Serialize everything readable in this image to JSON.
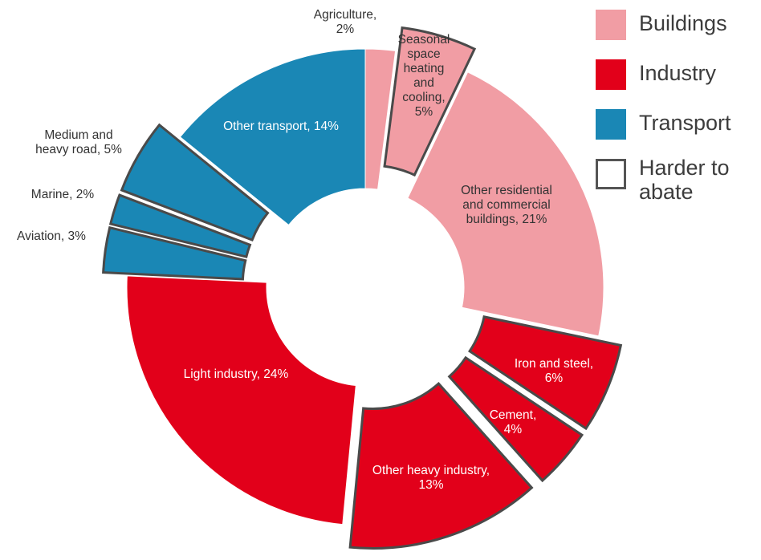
{
  "chart_data": {
    "type": "pie",
    "variant": "donut",
    "unit": "%",
    "slices": [
      {
        "label": "Agriculture, 2%",
        "value": 2,
        "sector": "Buildings",
        "harder_to_abate": false
      },
      {
        "label": "Seasonal space heating and cooling, 5%",
        "value": 5,
        "sector": "Buildings",
        "harder_to_abate": true
      },
      {
        "label": "Other residential and commercial buildings, 21%",
        "value": 21,
        "sector": "Buildings",
        "harder_to_abate": false
      },
      {
        "label": "Iron and steel, 6%",
        "value": 6,
        "sector": "Industry",
        "harder_to_abate": true
      },
      {
        "label": "Cement, 4%",
        "value": 4,
        "sector": "Industry",
        "harder_to_abate": true
      },
      {
        "label": "Other heavy industry, 13%",
        "value": 13,
        "sector": "Industry",
        "harder_to_abate": true
      },
      {
        "label": "Light industry, 24%",
        "value": 24,
        "sector": "Industry",
        "harder_to_abate": false
      },
      {
        "label": "Aviation, 3%",
        "value": 3,
        "sector": "Transport",
        "harder_to_abate": true
      },
      {
        "label": "Marine, 2%",
        "value": 2,
        "sector": "Transport",
        "harder_to_abate": true
      },
      {
        "label": "Medium and heavy road, 5%",
        "value": 5,
        "sector": "Transport",
        "harder_to_abate": true
      },
      {
        "label": "Other transport, 14%",
        "value": 14,
        "sector": "Transport",
        "harder_to_abate": false
      }
    ],
    "legend": [
      {
        "label": "Buildings",
        "color": "#f19da4"
      },
      {
        "label": "Industry",
        "color": "#e2001a"
      },
      {
        "label": "Transport",
        "color": "#1a87b5"
      },
      {
        "label": "Harder to abate",
        "color": "#ffffff",
        "outline": "#555555"
      }
    ],
    "legend_position": "top-right"
  },
  "slice_labels": [
    {
      "lines": [
        "Agriculture,",
        "2%"
      ]
    },
    {
      "lines": [
        "Seasonal",
        "space",
        "heating",
        "and",
        "cooling,",
        "5%"
      ]
    },
    {
      "lines": [
        "Other residential",
        "and commercial",
        "buildings, 21%"
      ]
    },
    {
      "lines": [
        "Iron and steel,",
        "6%"
      ]
    },
    {
      "lines": [
        "Cement,",
        "4%"
      ]
    },
    {
      "lines": [
        "Other heavy industry,",
        "13%"
      ]
    },
    {
      "lines": [
        "Light industry, 24%"
      ]
    },
    {
      "lines": [
        "Aviation, 3%"
      ]
    },
    {
      "lines": [
        "Marine, 2%"
      ]
    },
    {
      "lines": [
        "Medium and",
        "heavy road, 5%"
      ]
    },
    {
      "lines": [
        "Other transport, 14%"
      ]
    }
  ],
  "colors": {
    "Buildings": "#f19da4",
    "Industry": "#e2001a",
    "Transport": "#1a87b5",
    "outline": "#4a4a4a"
  }
}
